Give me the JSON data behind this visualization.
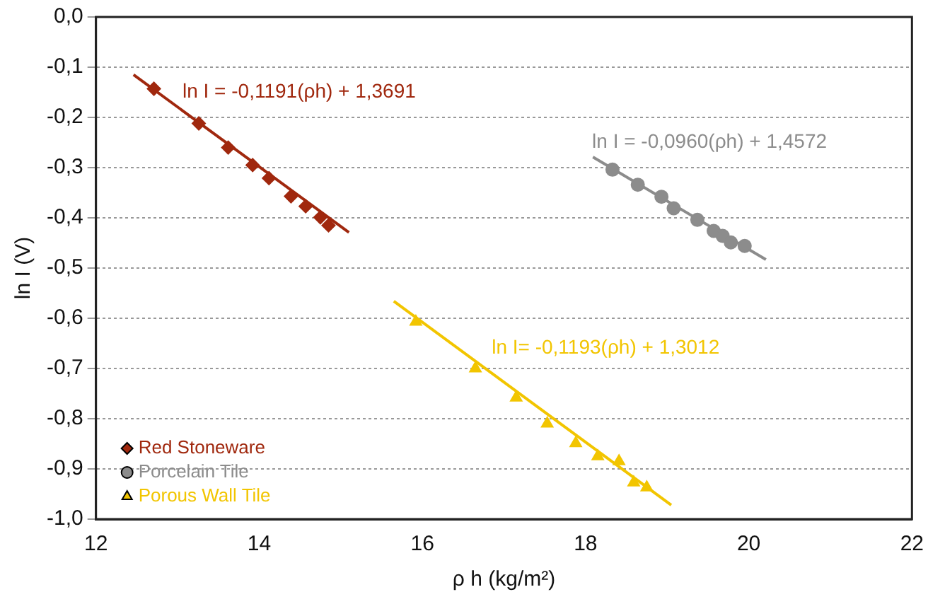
{
  "chart_data": {
    "type": "scatter",
    "xlabel": "ρ h (kg/m²)",
    "ylabel": "ln I (V)",
    "xlim": [
      12,
      22
    ],
    "xticks": [
      12,
      14,
      16,
      18,
      20,
      22
    ],
    "ylim": [
      -1,
      0
    ],
    "yticks": [
      {
        "value": -1,
        "label": "-1,0"
      },
      {
        "value": -0.9,
        "label": "-0,9"
      },
      {
        "value": -0.8,
        "label": "-0,8"
      },
      {
        "value": -0.7,
        "label": "-0,7"
      },
      {
        "value": -0.6,
        "label": "-0,6"
      },
      {
        "value": -0.5,
        "label": "-0,5"
      },
      {
        "value": -0.4,
        "label": "-0,4"
      },
      {
        "value": -0.3,
        "label": "-0,3"
      },
      {
        "value": -0.2,
        "label": "-0,2"
      },
      {
        "value": -0.1,
        "label": "-0,1"
      },
      {
        "value": 0,
        "label": "0,0"
      }
    ],
    "grid": "y",
    "legend": "bottom left",
    "line_style": "solid",
    "series": [
      {
        "name": "Red Stoneware",
        "color": "#a0280e",
        "marker": "diamond",
        "x": [
          12.71,
          13.26,
          13.62,
          13.92,
          14.12,
          14.39,
          14.57,
          14.75,
          14.85
        ],
        "values": [
          -0.143,
          -0.212,
          -0.26,
          -0.295,
          -0.321,
          -0.357,
          -0.377,
          -0.399,
          -0.415
        ]
      },
      {
        "name": "Porcelain Tile",
        "color": "#8c8c8c",
        "marker": "circle",
        "x": [
          18.33,
          18.64,
          18.93,
          19.08,
          19.37,
          19.57,
          19.68,
          19.78,
          19.95
        ],
        "values": [
          -0.304,
          -0.334,
          -0.358,
          -0.381,
          -0.404,
          -0.426,
          -0.436,
          -0.449,
          -0.456
        ]
      },
      {
        "name": "Porous Wall Tile",
        "color": "#f2c500",
        "marker": "triangle",
        "x": [
          15.92,
          16.65,
          17.15,
          17.53,
          17.88,
          18.15,
          18.41,
          18.59,
          18.75
        ],
        "values": [
          -0.607,
          -0.7,
          -0.758,
          -0.81,
          -0.849,
          -0.875,
          -0.885,
          -0.927,
          -0.937
        ]
      },
      {
        "type": "line",
        "color": "#a0280e",
        "marker": "none",
        "x": [
          12.46,
          15.1
        ],
        "values": [
          -0.115,
          -0.429
        ]
      },
      {
        "type": "line",
        "color": "#8c8c8c",
        "marker": "none",
        "x": [
          18.09,
          20.21
        ],
        "values": [
          -0.279,
          -0.483
        ]
      },
      {
        "type": "line",
        "color": "#f2c500",
        "marker": "none",
        "x": [
          15.65,
          19.05
        ],
        "values": [
          -0.566,
          -0.972
        ]
      }
    ],
    "annotations": [
      "ln I = -0,1191(ρh) + 1,3691",
      "ln I = -0,0960(ρh) + 1,4572",
      "ln I= -0,1193(ρh) + 1,3012"
    ]
  }
}
